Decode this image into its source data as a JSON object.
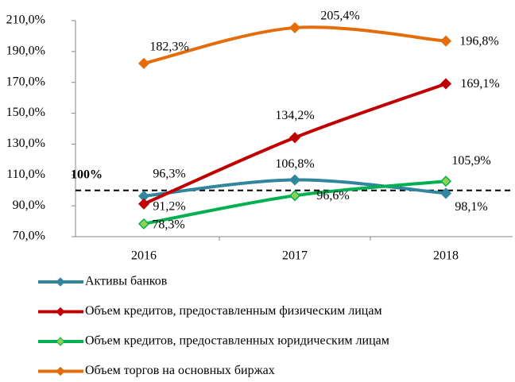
{
  "chart_data": {
    "type": "line",
    "categories": [
      "2016",
      "2017",
      "2018"
    ],
    "series": [
      {
        "name": "Активы банков",
        "color": "#31859c",
        "values": [
          96.3,
          106.8,
          98.1
        ],
        "value_labels": [
          "96,3%",
          "106,8%",
          "98,1%"
        ]
      },
      {
        "name": "Объем кредитов, предоставленным физическим лицам",
        "color": "#c00000",
        "values": [
          91.2,
          134.2,
          169.1
        ],
        "value_labels": [
          "91,2%",
          "134,2%",
          "169,1%"
        ]
      },
      {
        "name": "Объем кредитов, предоставленных юридическим лицам",
        "color": "#00b050",
        "marker_fill": "#92d050",
        "values": [
          78.3,
          96.6,
          105.9
        ],
        "value_labels": [
          "78,3%",
          "96,6%",
          "105,9%"
        ]
      },
      {
        "name": "Объем торгов на основных биржах",
        "color": "#e46c0a",
        "values": [
          182.3,
          205.4,
          196.8
        ],
        "value_labels": [
          "182,3%",
          "205,4%",
          "196,8%"
        ]
      }
    ],
    "ylim": [
      70,
      210
    ],
    "yticks": [
      {
        "value": 70,
        "label": "70,0%"
      },
      {
        "value": 90,
        "label": "90,0%"
      },
      {
        "value": 110,
        "label": "110,0%"
      },
      {
        "value": 130,
        "label": "130,0%"
      },
      {
        "value": 150,
        "label": "150,0%"
      },
      {
        "value": 170,
        "label": "170,0%"
      },
      {
        "value": 190,
        "label": "190,0%"
      },
      {
        "value": 210,
        "label": "210,0%"
      }
    ],
    "reference_line": {
      "value": 100,
      "label": "100%"
    },
    "legend": "bottom"
  }
}
